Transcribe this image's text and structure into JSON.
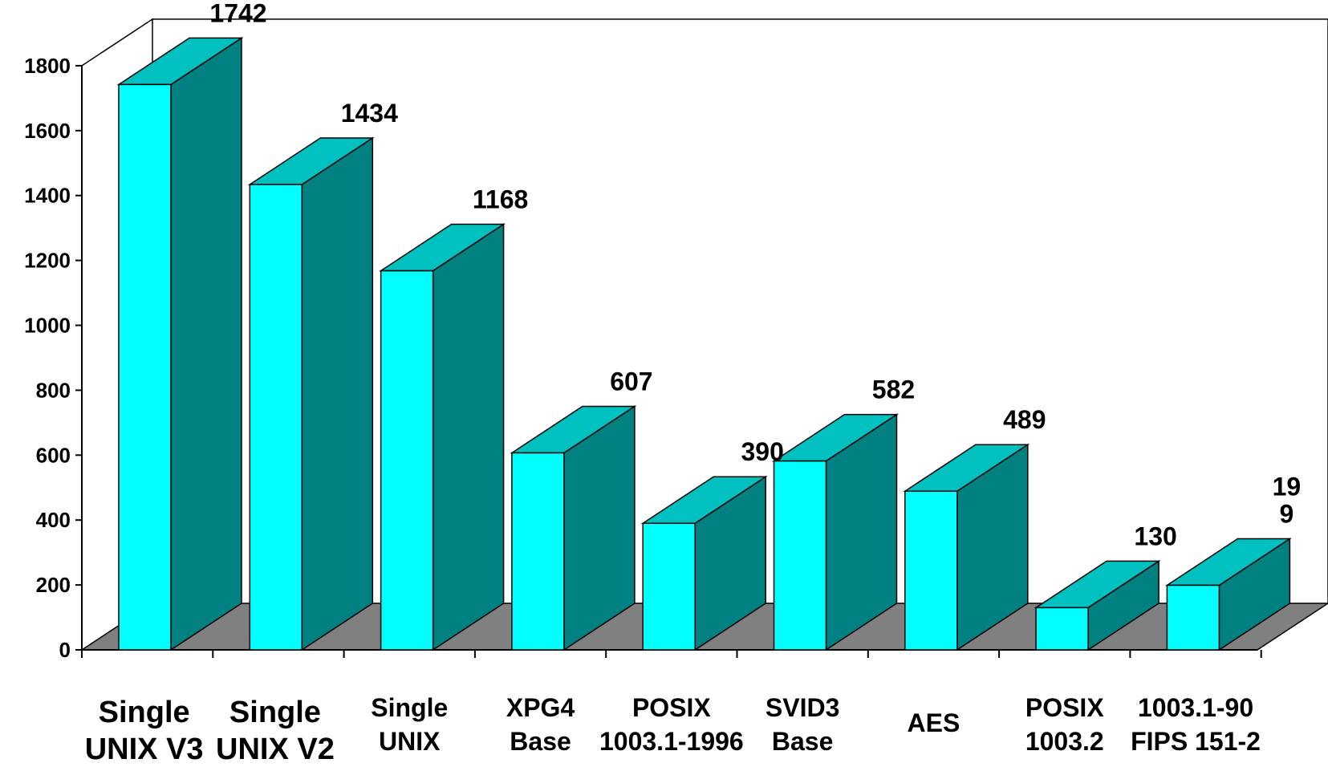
{
  "chart_data": {
    "type": "bar",
    "title": "",
    "xlabel": "",
    "ylabel": "",
    "ylim": [
      0,
      1800
    ],
    "yticks": [
      "0",
      "200",
      "400",
      "600",
      "800",
      "1000",
      "1200",
      "1400",
      "1600",
      "1800"
    ],
    "grid": false,
    "legend": "none",
    "style": "3d-columns",
    "categories": [
      [
        "Single",
        "UNIX V3"
      ],
      [
        "Single",
        "UNIX V2"
      ],
      [
        "Single",
        "UNIX"
      ],
      [
        "XPG4",
        "Base"
      ],
      [
        "POSIX",
        "1003.1-1996"
      ],
      [
        "SVID3",
        "Base"
      ],
      [
        "AES"
      ],
      [
        "POSIX",
        "1003.2"
      ],
      [
        "1003.1-90",
        "FIPS 151-2"
      ]
    ],
    "values": [
      1742,
      1434,
      1168,
      607,
      390,
      582,
      489,
      130,
      199
    ],
    "data_labels": [
      [
        "1742"
      ],
      [
        "1434"
      ],
      [
        "1168"
      ],
      [
        "607"
      ],
      [
        "390"
      ],
      [
        "582"
      ],
      [
        "489"
      ],
      [
        "130"
      ],
      [
        "19",
        "9"
      ]
    ],
    "colors": {
      "front": "#00ffff",
      "top": "#00c0c0",
      "side": "#008080",
      "floor": "#808080",
      "outline": "#000000"
    }
  }
}
